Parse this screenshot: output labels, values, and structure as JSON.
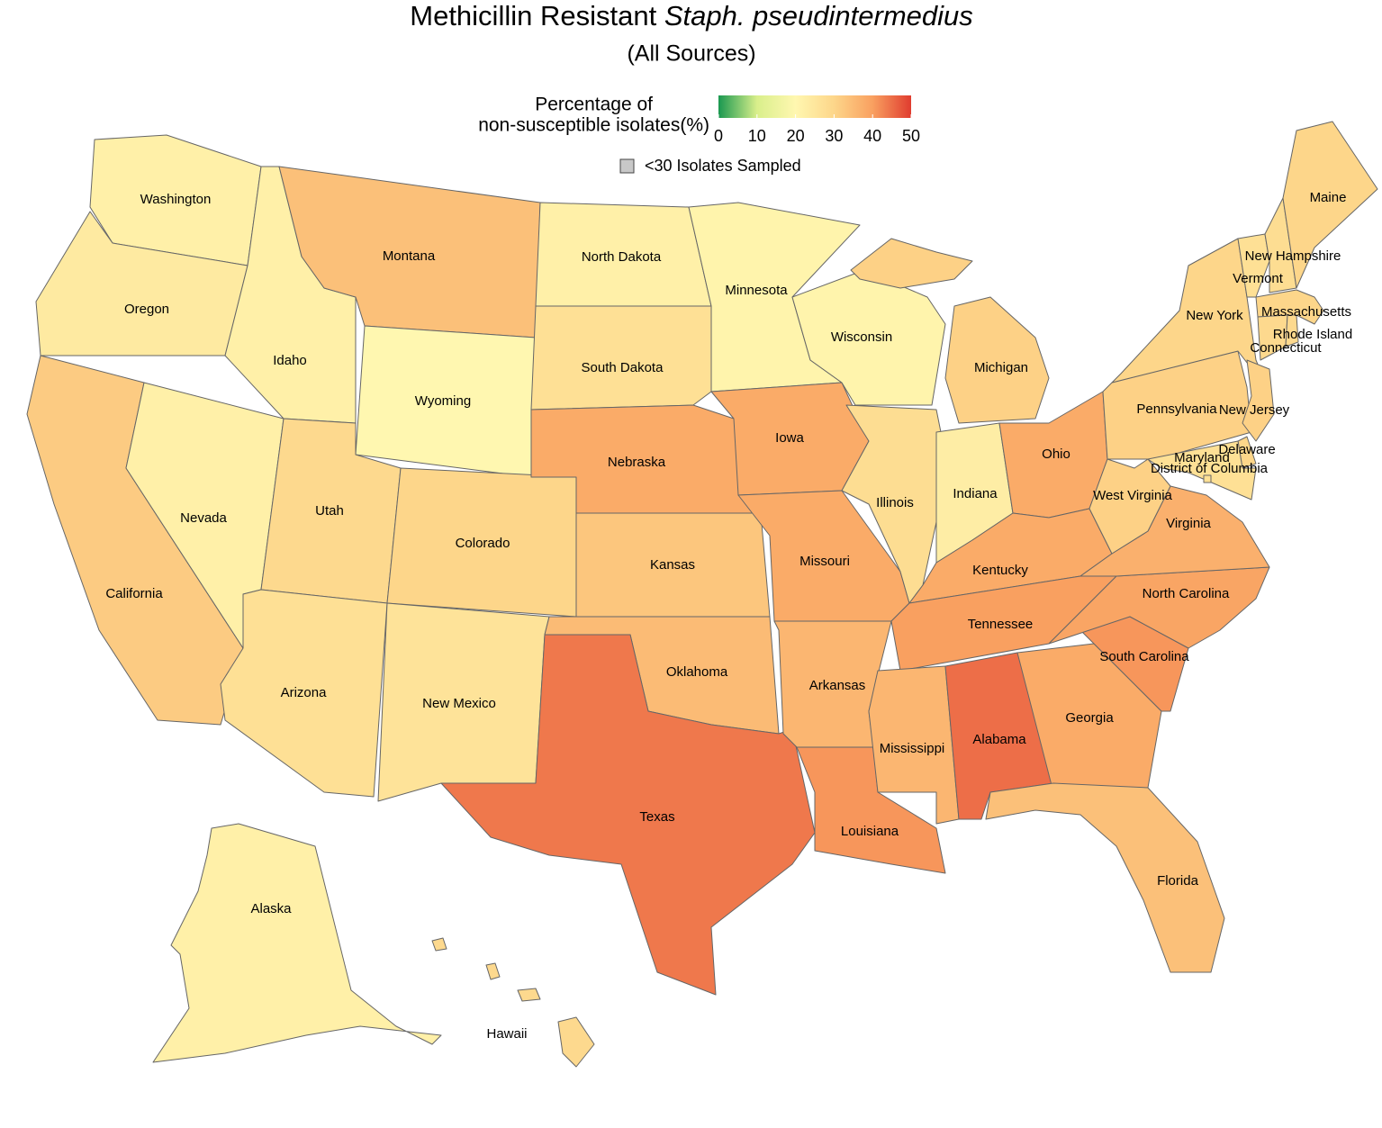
{
  "chart_data": {
    "type": "choropleth",
    "title": [
      "Methicillin Resistant",
      "Staph. pseudintermedius"
    ],
    "subtitle": "(All Sources)",
    "legend_title": [
      "Percentage of",
      "non-susceptible isolates(%)"
    ],
    "colorbar": {
      "lim": [
        0,
        50
      ],
      "ticks": [
        0,
        10,
        20,
        30,
        40,
        50
      ],
      "colors": [
        "#1a9850",
        "#d9ef8b",
        "#fff7b0",
        "#fdd68a",
        "#f9a060",
        "#e03c2f"
      ]
    },
    "na_label": "<30 Isolates Sampled",
    "na_color": "#c8c8c8",
    "states": [
      {
        "name": "Washington",
        "value": 22
      },
      {
        "name": "Oregon",
        "value": 24
      },
      {
        "name": "California",
        "value": 32
      },
      {
        "name": "Nevada",
        "value": 22
      },
      {
        "name": "Idaho",
        "value": 22
      },
      {
        "name": "Montana",
        "value": 34
      },
      {
        "name": "Wyoming",
        "value": 20
      },
      {
        "name": "Utah",
        "value": 29
      },
      {
        "name": "Colorado",
        "value": 30
      },
      {
        "name": "Arizona",
        "value": 27
      },
      {
        "name": "New Mexico",
        "value": 26
      },
      {
        "name": "North Dakota",
        "value": 22
      },
      {
        "name": "South Dakota",
        "value": 27
      },
      {
        "name": "Nebraska",
        "value": 38
      },
      {
        "name": "Kansas",
        "value": 33
      },
      {
        "name": "Oklahoma",
        "value": 35
      },
      {
        "name": "Texas",
        "value": 44
      },
      {
        "name": "Minnesota",
        "value": 21
      },
      {
        "name": "Iowa",
        "value": 38
      },
      {
        "name": "Missouri",
        "value": 38
      },
      {
        "name": "Arkansas",
        "value": 36
      },
      {
        "name": "Louisiana",
        "value": 41
      },
      {
        "name": "Wisconsin",
        "value": 21
      },
      {
        "name": "Illinois",
        "value": 28
      },
      {
        "name": "Michigan",
        "value": 31
      },
      {
        "name": "Indiana",
        "value": 23
      },
      {
        "name": "Ohio",
        "value": 38
      },
      {
        "name": "Kentucky",
        "value": 38
      },
      {
        "name": "Tennessee",
        "value": 40
      },
      {
        "name": "Mississippi",
        "value": 36
      },
      {
        "name": "Alabama",
        "value": 45
      },
      {
        "name": "Georgia",
        "value": 38
      },
      {
        "name": "Florida",
        "value": 34
      },
      {
        "name": "South Carolina",
        "value": 41
      },
      {
        "name": "North Carolina",
        "value": 39
      },
      {
        "name": "Virginia",
        "value": 37
      },
      {
        "name": "West Virginia",
        "value": 31
      },
      {
        "name": "Pennsylvania",
        "value": 31
      },
      {
        "name": "New York",
        "value": 30
      },
      {
        "name": "Vermont",
        "value": 27
      },
      {
        "name": "New Hampshire",
        "value": 28
      },
      {
        "name": "Maine",
        "value": 30
      },
      {
        "name": "Massachusetts",
        "value": 30
      },
      {
        "name": "Connecticut",
        "value": 29
      },
      {
        "name": "Rhode Island",
        "value": 29
      },
      {
        "name": "New Jersey",
        "value": 31
      },
      {
        "name": "Delaware",
        "value": 30
      },
      {
        "name": "Maryland",
        "value": 27
      },
      {
        "name": "District of Columbia",
        "value": 27
      },
      {
        "name": "Alaska",
        "value": 22
      },
      {
        "name": "Hawaii",
        "value": 29
      }
    ]
  }
}
